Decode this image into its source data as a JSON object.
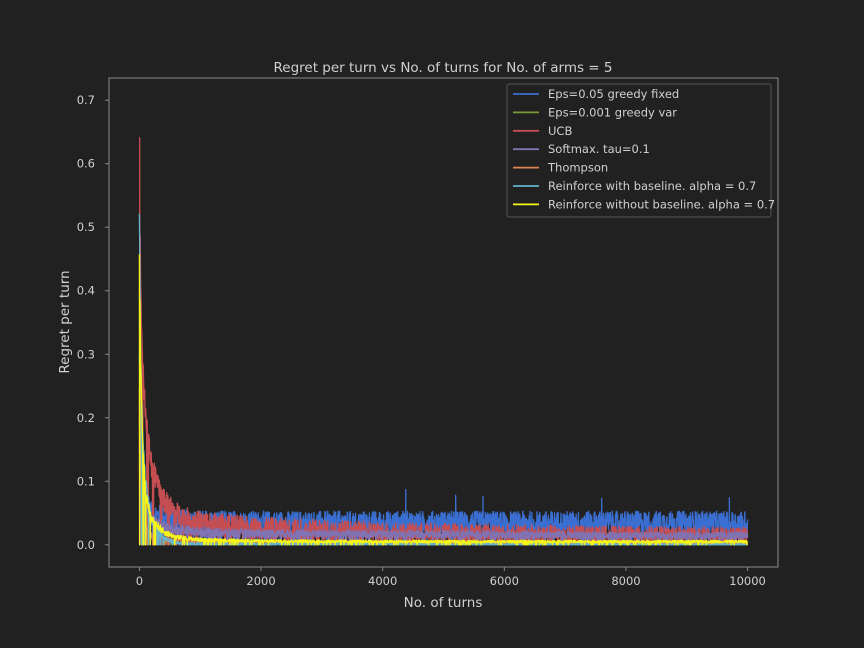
{
  "chart_data": {
    "type": "line",
    "title": "Regret per turn vs No. of turns for No. of arms = 5",
    "xlabel": "No. of turns",
    "ylabel": "Regret per turn",
    "xlim": [
      -500,
      10500
    ],
    "ylim": [
      -0.035,
      0.735
    ],
    "xticks": [
      0,
      2000,
      4000,
      6000,
      8000,
      10000
    ],
    "yticks": [
      0.0,
      0.1,
      0.2,
      0.3,
      0.4,
      0.5,
      0.6,
      0.7
    ],
    "xtick_labels": [
      "0",
      "2000",
      "4000",
      "6000",
      "8000",
      "10000"
    ],
    "ytick_labels": [
      "0.0",
      "0.1",
      "0.2",
      "0.3",
      "0.4",
      "0.5",
      "0.6",
      "0.7"
    ],
    "grid": false,
    "legend_position": "top-right",
    "background_color": "#212121",
    "axes_color": "#8a8a8a",
    "series": [
      {
        "name": "Eps=0.05 greedy fixed",
        "color": "#3a6fd1",
        "x": [
          0,
          20,
          50,
          100,
          200,
          400,
          600,
          1000,
          2000,
          4000,
          6000,
          8000,
          10000
        ],
        "values": [
          0.3,
          0.18,
          0.12,
          0.08,
          0.05,
          0.042,
          0.038,
          0.036,
          0.035,
          0.035,
          0.035,
          0.035,
          0.035
        ],
        "noise": 0.018,
        "spikes": [
          [
            4380,
            0.087
          ],
          [
            5200,
            0.078
          ],
          [
            5650,
            0.076
          ],
          [
            7600,
            0.073
          ],
          [
            9700,
            0.074
          ]
        ]
      },
      {
        "name": "Eps=0.001 greedy var",
        "color": "#7a9a3a",
        "x": [
          0,
          20,
          50,
          100,
          200,
          400,
          1000,
          10000
        ],
        "values": [
          0.2,
          0.1,
          0.04,
          0.02,
          0.01,
          0.005,
          0.002,
          0.001
        ],
        "noise": 0.002,
        "spikes": []
      },
      {
        "name": "UCB",
        "color": "#c44e52",
        "x": [
          0,
          10,
          20,
          50,
          100,
          150,
          200,
          300,
          400,
          600,
          800,
          1000,
          1500,
          2000,
          4000,
          6000,
          8000,
          10000
        ],
        "values": [
          0.7,
          0.55,
          0.4,
          0.3,
          0.2,
          0.17,
          0.12,
          0.1,
          0.07,
          0.05,
          0.04,
          0.035,
          0.03,
          0.025,
          0.02,
          0.018,
          0.016,
          0.015
        ],
        "noise": 0.018,
        "spikes": []
      },
      {
        "name": "Softmax. tau=0.1",
        "color": "#8172b2",
        "x": [
          0,
          20,
          50,
          100,
          200,
          500,
          1000,
          2000,
          4000,
          6000,
          8000,
          10000
        ],
        "values": [
          0.3,
          0.2,
          0.1,
          0.06,
          0.04,
          0.025,
          0.02,
          0.018,
          0.017,
          0.016,
          0.015,
          0.015
        ],
        "noise": 0.008,
        "spikes": []
      },
      {
        "name": "Thompson",
        "color": "#dd8452",
        "x": [
          0,
          20,
          50,
          100,
          200,
          500,
          1000,
          2000,
          4000,
          6000,
          8000,
          10000
        ],
        "values": [
          0.25,
          0.12,
          0.06,
          0.03,
          0.015,
          0.008,
          0.005,
          0.004,
          0.003,
          0.003,
          0.003,
          0.003
        ],
        "noise": 0.005,
        "spikes": []
      },
      {
        "name": "Reinforce with baseline. alpha = 0.7",
        "color": "#64b5cd",
        "x": [
          0,
          20,
          50,
          100,
          200,
          400,
          600,
          1000,
          10000
        ],
        "values": [
          0.52,
          0.3,
          0.18,
          0.1,
          0.04,
          0.01,
          0.003,
          0.001,
          0.0
        ],
        "noise": 0.008,
        "spikes": []
      },
      {
        "name": "Reinforce without baseline. alpha = 0.7",
        "color": "#f5f51a",
        "x": [
          0,
          20,
          50,
          100,
          200,
          400,
          600,
          1000,
          2000,
          4000,
          6000,
          8000,
          10000
        ],
        "values": [
          0.46,
          0.3,
          0.17,
          0.08,
          0.04,
          0.02,
          0.012,
          0.008,
          0.006,
          0.005,
          0.005,
          0.005,
          0.005
        ],
        "noise": 0.006,
        "spikes": []
      }
    ]
  }
}
